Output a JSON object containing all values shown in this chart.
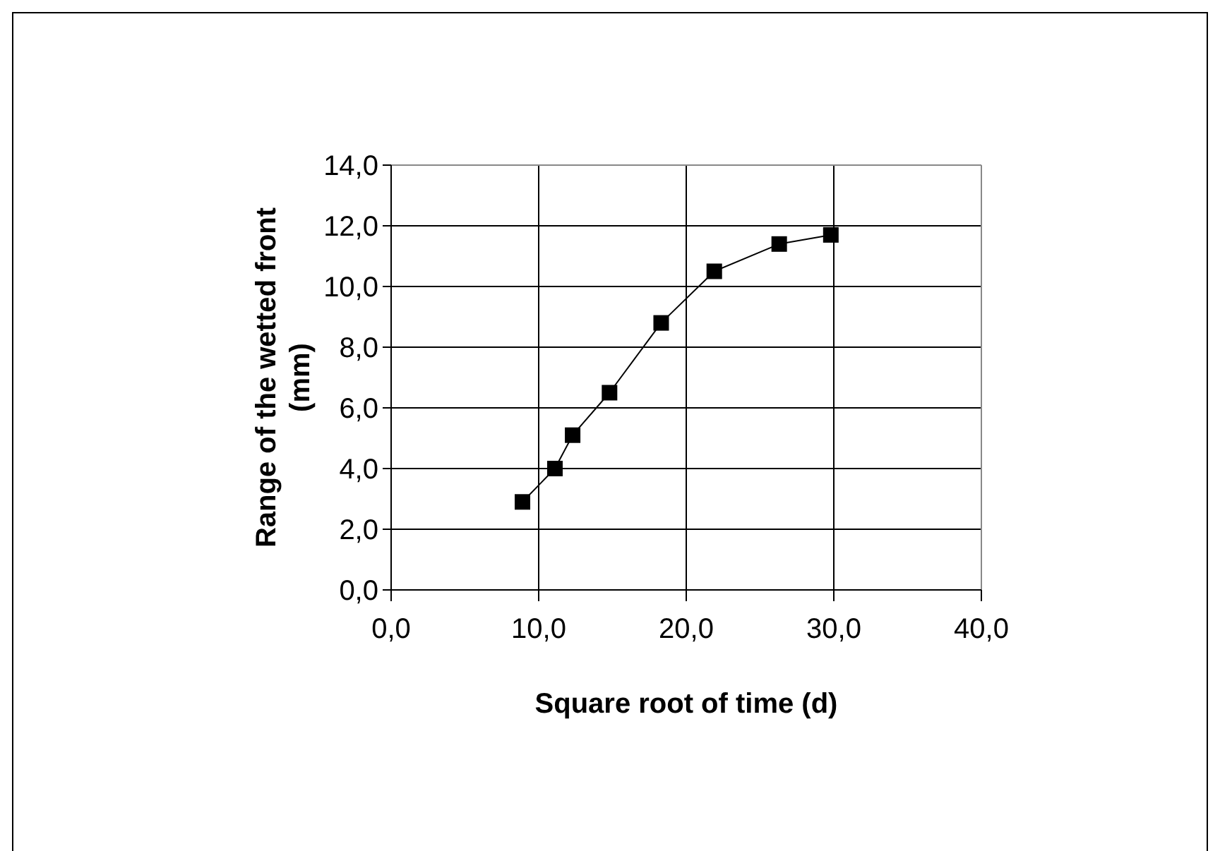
{
  "chart_data": {
    "type": "line",
    "xlabel": "Square root of time (d)",
    "ylabel": "Range of the wetted front (mm)",
    "x": [
      8.9,
      11.1,
      12.3,
      14.8,
      18.3,
      21.9,
      26.3,
      29.8
    ],
    "series": [
      {
        "color": "#000000",
        "values": [
          2.9,
          4.0,
          5.1,
          6.5,
          8.8,
          10.5,
          11.4,
          11.7
        ]
      }
    ],
    "marker": "square",
    "line_style": "solid",
    "grid": true,
    "xlim": [
      0,
      40
    ],
    "xticks": [
      {
        "value": 0,
        "label": "0,0"
      },
      {
        "value": 10,
        "label": "10,0"
      },
      {
        "value": 20,
        "label": "20,0"
      },
      {
        "value": 30,
        "label": "30,0"
      },
      {
        "value": 40,
        "label": "40,0"
      }
    ],
    "ylim": [
      0,
      14
    ],
    "yticks": [
      {
        "value": 0,
        "label": "0,0"
      },
      {
        "value": 2,
        "label": "2,0"
      },
      {
        "value": 4,
        "label": "4,0"
      },
      {
        "value": 6,
        "label": "6,0"
      },
      {
        "value": 8,
        "label": "8,0"
      },
      {
        "value": 10,
        "label": "10,0"
      },
      {
        "value": 12,
        "label": "12,0"
      },
      {
        "value": 14,
        "label": "14,0"
      }
    ]
  }
}
